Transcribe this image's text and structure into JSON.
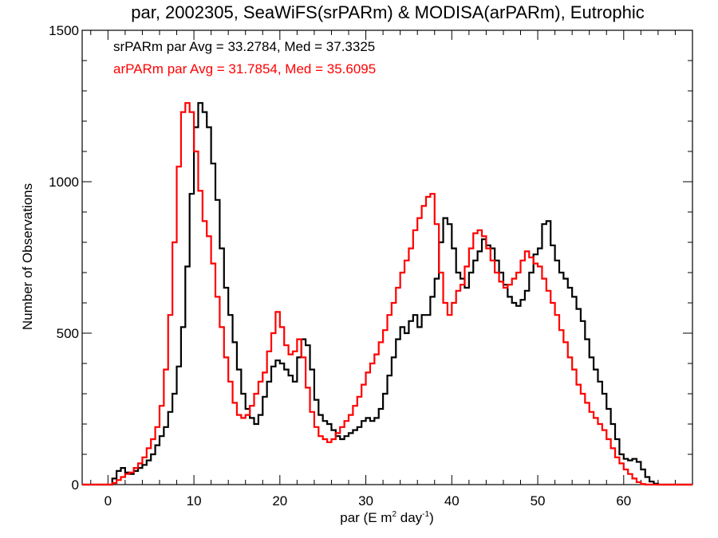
{
  "chart_data": {
    "type": "line",
    "style": "step histogram",
    "title": "par, 2002305, SeaWiFS(srPARm) & MODISA(arPARm), Eutrophic",
    "xlabel_main": "par (E m",
    "xlabel_sup1": "2",
    "xlabel_mid": " day",
    "xlabel_sup2": "-1",
    "xlabel_end": ")",
    "ylabel": "Number of Observations",
    "xlim": [
      -3,
      68
    ],
    "ylim": [
      0,
      1500
    ],
    "x_ticks": [
      0,
      10,
      20,
      30,
      40,
      50,
      60
    ],
    "y_ticks": [
      0,
      500,
      1000,
      1500
    ],
    "legend_placement": "top-left",
    "series": [
      {
        "name": "srPARm par Avg = 33.2784, Med = 37.3325",
        "color": "#000000",
        "points": [
          [
            0,
            0
          ],
          [
            0.5,
            20
          ],
          [
            1,
            45
          ],
          [
            1.5,
            55
          ],
          [
            2,
            40
          ],
          [
            2.5,
            35
          ],
          [
            3,
            45
          ],
          [
            3.5,
            55
          ],
          [
            4,
            65
          ],
          [
            4.5,
            80
          ],
          [
            5,
            100
          ],
          [
            5.5,
            130
          ],
          [
            6,
            160
          ],
          [
            6.5,
            190
          ],
          [
            7,
            240
          ],
          [
            7.5,
            300
          ],
          [
            8,
            390
          ],
          [
            8.5,
            520
          ],
          [
            9,
            720
          ],
          [
            9.5,
            960
          ],
          [
            10,
            1180
          ],
          [
            10.5,
            1260
          ],
          [
            11,
            1230
          ],
          [
            11.5,
            1180
          ],
          [
            12,
            1060
          ],
          [
            12.5,
            940
          ],
          [
            13,
            780
          ],
          [
            13.5,
            650
          ],
          [
            14,
            560
          ],
          [
            14.5,
            470
          ],
          [
            15,
            380
          ],
          [
            15.5,
            300
          ],
          [
            16,
            250
          ],
          [
            16.5,
            220
          ],
          [
            17,
            200
          ],
          [
            17.5,
            230
          ],
          [
            18,
            290
          ],
          [
            18.5,
            340
          ],
          [
            19,
            390
          ],
          [
            19.5,
            410
          ],
          [
            20,
            400
          ],
          [
            20.5,
            380
          ],
          [
            21,
            360
          ],
          [
            21.5,
            340
          ],
          [
            22,
            420
          ],
          [
            22.5,
            480
          ],
          [
            23,
            460
          ],
          [
            23.5,
            380
          ],
          [
            24,
            280
          ],
          [
            24.5,
            230
          ],
          [
            25,
            210
          ],
          [
            25.5,
            200
          ],
          [
            26,
            180
          ],
          [
            26.5,
            160
          ],
          [
            27,
            150
          ],
          [
            27.5,
            160
          ],
          [
            28,
            170
          ],
          [
            28.5,
            180
          ],
          [
            29,
            190
          ],
          [
            29.5,
            210
          ],
          [
            30,
            220
          ],
          [
            30.5,
            210
          ],
          [
            31,
            220
          ],
          [
            31.5,
            250
          ],
          [
            32,
            300
          ],
          [
            32.5,
            360
          ],
          [
            33,
            420
          ],
          [
            33.5,
            480
          ],
          [
            34,
            520
          ],
          [
            34.5,
            500
          ],
          [
            35,
            540
          ],
          [
            35.5,
            560
          ],
          [
            36,
            520
          ],
          [
            36.5,
            560
          ],
          [
            37,
            560
          ],
          [
            37.5,
            620
          ],
          [
            38,
            680
          ],
          [
            38.5,
            800
          ],
          [
            39,
            880
          ],
          [
            39.5,
            860
          ],
          [
            40,
            780
          ],
          [
            40.5,
            700
          ],
          [
            41,
            680
          ],
          [
            41.5,
            650
          ],
          [
            42,
            700
          ],
          [
            42.5,
            740
          ],
          [
            43,
            770
          ],
          [
            43.5,
            810
          ],
          [
            44,
            790
          ],
          [
            44.5,
            780
          ],
          [
            45,
            740
          ],
          [
            45.5,
            700
          ],
          [
            46,
            660
          ],
          [
            46.5,
            620
          ],
          [
            47,
            600
          ],
          [
            47.5,
            590
          ],
          [
            48,
            610
          ],
          [
            48.5,
            640
          ],
          [
            49,
            700
          ],
          [
            49.5,
            760
          ],
          [
            50,
            780
          ],
          [
            50.5,
            860
          ],
          [
            51,
            870
          ],
          [
            51.5,
            790
          ],
          [
            52,
            740
          ],
          [
            52.5,
            700
          ],
          [
            53,
            680
          ],
          [
            53.5,
            650
          ],
          [
            54,
            620
          ],
          [
            54.5,
            580
          ],
          [
            55,
            540
          ],
          [
            55.5,
            480
          ],
          [
            56,
            420
          ],
          [
            56.5,
            380
          ],
          [
            57,
            340
          ],
          [
            57.5,
            300
          ],
          [
            58,
            250
          ],
          [
            58.5,
            200
          ],
          [
            59,
            150
          ],
          [
            59.5,
            100
          ],
          [
            60,
            85
          ],
          [
            60.5,
            80
          ],
          [
            61,
            85
          ],
          [
            61.5,
            75
          ],
          [
            62,
            50
          ],
          [
            62.5,
            25
          ],
          [
            63,
            10
          ],
          [
            63.5,
            3
          ],
          [
            64,
            0
          ]
        ]
      },
      {
        "name": "arPARm par Avg = 31.7854, Med = 35.6095",
        "color": "#ff0000",
        "points": [
          [
            0,
            0
          ],
          [
            0.5,
            5
          ],
          [
            1,
            15
          ],
          [
            1.5,
            25
          ],
          [
            2,
            35
          ],
          [
            2.5,
            40
          ],
          [
            3,
            55
          ],
          [
            3.5,
            70
          ],
          [
            4,
            90
          ],
          [
            4.5,
            120
          ],
          [
            5,
            150
          ],
          [
            5.5,
            190
          ],
          [
            6,
            260
          ],
          [
            6.5,
            380
          ],
          [
            7,
            560
          ],
          [
            7.5,
            800
          ],
          [
            8,
            1050
          ],
          [
            8.5,
            1230
          ],
          [
            9,
            1260
          ],
          [
            9.5,
            1230
          ],
          [
            10,
            1100
          ],
          [
            10.5,
            970
          ],
          [
            11,
            870
          ],
          [
            11.5,
            820
          ],
          [
            12,
            730
          ],
          [
            12.5,
            620
          ],
          [
            13,
            520
          ],
          [
            13.5,
            420
          ],
          [
            14,
            340
          ],
          [
            14.5,
            270
          ],
          [
            15,
            230
          ],
          [
            15.5,
            220
          ],
          [
            16,
            230
          ],
          [
            16.5,
            260
          ],
          [
            17,
            300
          ],
          [
            17.5,
            340
          ],
          [
            18,
            370
          ],
          [
            18.5,
            440
          ],
          [
            19,
            500
          ],
          [
            19.5,
            570
          ],
          [
            20,
            520
          ],
          [
            20.5,
            460
          ],
          [
            21,
            430
          ],
          [
            21.5,
            440
          ],
          [
            22,
            480
          ],
          [
            22.5,
            420
          ],
          [
            23,
            320
          ],
          [
            23.5,
            240
          ],
          [
            24,
            190
          ],
          [
            24.5,
            160
          ],
          [
            25,
            150
          ],
          [
            25.5,
            140
          ],
          [
            26,
            150
          ],
          [
            26.5,
            170
          ],
          [
            27,
            190
          ],
          [
            27.5,
            210
          ],
          [
            28,
            230
          ],
          [
            28.5,
            260
          ],
          [
            29,
            290
          ],
          [
            29.5,
            330
          ],
          [
            30,
            370
          ],
          [
            30.5,
            400
          ],
          [
            31,
            430
          ],
          [
            31.5,
            470
          ],
          [
            32,
            510
          ],
          [
            32.5,
            560
          ],
          [
            33,
            600
          ],
          [
            33.5,
            650
          ],
          [
            34,
            700
          ],
          [
            34.5,
            740
          ],
          [
            35,
            780
          ],
          [
            35.5,
            840
          ],
          [
            36,
            880
          ],
          [
            36.5,
            920
          ],
          [
            37,
            950
          ],
          [
            37.5,
            960
          ],
          [
            38,
            860
          ],
          [
            38.5,
            700
          ],
          [
            39,
            600
          ],
          [
            39.5,
            560
          ],
          [
            40,
            600
          ],
          [
            40.5,
            640
          ],
          [
            41,
            660
          ],
          [
            41.5,
            720
          ],
          [
            42,
            780
          ],
          [
            42.5,
            830
          ],
          [
            43,
            840
          ],
          [
            43.5,
            820
          ],
          [
            44,
            780
          ],
          [
            44.5,
            740
          ],
          [
            45,
            700
          ],
          [
            45.5,
            670
          ],
          [
            46,
            650
          ],
          [
            46.5,
            660
          ],
          [
            47,
            680
          ],
          [
            47.5,
            700
          ],
          [
            48,
            740
          ],
          [
            48.5,
            770
          ],
          [
            49,
            750
          ],
          [
            49.5,
            730
          ],
          [
            50,
            720
          ],
          [
            50.5,
            680
          ],
          [
            51,
            640
          ],
          [
            51.5,
            600
          ],
          [
            52,
            560
          ],
          [
            52.5,
            510
          ],
          [
            53,
            470
          ],
          [
            53.5,
            420
          ],
          [
            54,
            380
          ],
          [
            54.5,
            330
          ],
          [
            55,
            300
          ],
          [
            55.5,
            270
          ],
          [
            56,
            240
          ],
          [
            56.5,
            220
          ],
          [
            57,
            200
          ],
          [
            57.5,
            180
          ],
          [
            58,
            150
          ],
          [
            58.5,
            120
          ],
          [
            59,
            90
          ],
          [
            59.5,
            70
          ],
          [
            60,
            50
          ],
          [
            60.5,
            35
          ],
          [
            61,
            20
          ],
          [
            61.5,
            8
          ],
          [
            62,
            2
          ],
          [
            62.5,
            0
          ]
        ]
      }
    ]
  }
}
